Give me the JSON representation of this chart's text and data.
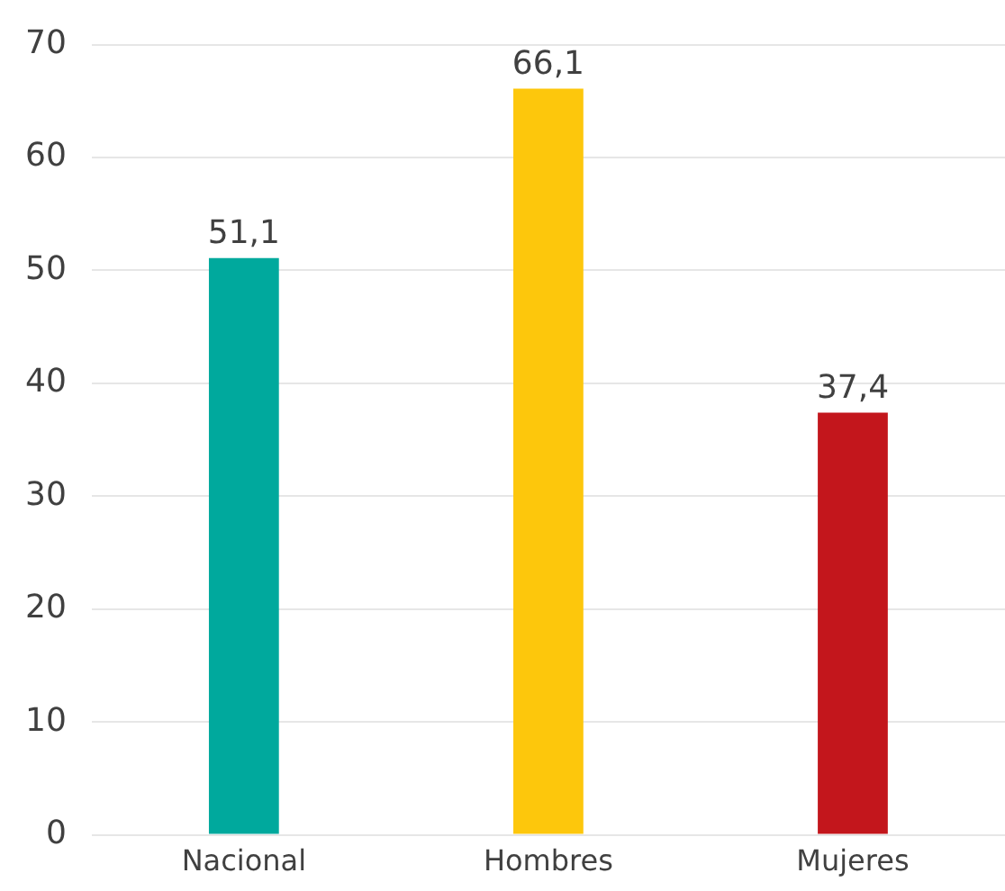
{
  "chart_data": {
    "type": "bar",
    "categories": [
      "Nacional",
      "Hombres",
      "Mujeres"
    ],
    "values": [
      51.1,
      66.1,
      37.4
    ],
    "colors": [
      "#00a99d",
      "#fdc70c",
      "#c3161c"
    ],
    "value_labels": [
      "51,1",
      "66,1",
      "37,4"
    ],
    "ylim": [
      0,
      70
    ],
    "yticks": [
      0,
      10,
      20,
      30,
      40,
      50,
      60,
      70
    ],
    "grid": "y",
    "legend": false
  }
}
